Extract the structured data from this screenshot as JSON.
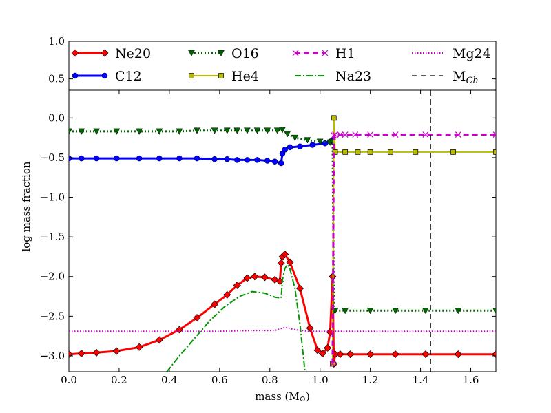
{
  "chart_data": {
    "type": "line",
    "title": "",
    "xlabel": "mass (M",
    "xlabel_symbol": "⊙",
    "ylabel": "log mass fraction",
    "xlim": [
      0.0,
      1.7
    ],
    "ylim": [
      -3.2,
      1.0
    ],
    "legend_break": 0.35,
    "x_ticks": [
      "0.0",
      "0.2",
      "0.4",
      "0.6",
      "0.8",
      "1.0",
      "1.2",
      "1.4",
      "1.6"
    ],
    "y_ticks": [
      "1.0",
      "0.5",
      "0.0",
      "−0.5",
      "−1.0",
      "−1.5",
      "−2.0",
      "−2.5",
      "−3.0"
    ],
    "legend_location": "top",
    "series": [
      {
        "name": "Ne20",
        "color": "#ff0000",
        "line": "solid",
        "marker": "diamond",
        "width": 3,
        "x": [
          0.0,
          0.05,
          0.11,
          0.19,
          0.28,
          0.36,
          0.44,
          0.51,
          0.58,
          0.63,
          0.67,
          0.71,
          0.74,
          0.78,
          0.82,
          0.84,
          0.845,
          0.85,
          0.86,
          0.88,
          0.92,
          0.96,
          0.99,
          1.01,
          1.03,
          1.04,
          1.05,
          1.055,
          1.06,
          1.08,
          1.12,
          1.2,
          1.3,
          1.42,
          1.55,
          1.7
        ],
        "y": [
          -2.98,
          -2.97,
          -2.96,
          -2.94,
          -2.89,
          -2.8,
          -2.67,
          -2.52,
          -2.35,
          -2.23,
          -2.11,
          -2.02,
          -2.0,
          -2.01,
          -2.04,
          -2.06,
          -1.83,
          -1.75,
          -1.72,
          -1.82,
          -2.15,
          -2.65,
          -2.93,
          -2.97,
          -2.9,
          -2.7,
          -2.0,
          -3.1,
          -2.98,
          -2.98,
          -2.98,
          -2.98,
          -2.98,
          -2.98,
          -2.98,
          -2.98
        ]
      },
      {
        "name": "C12",
        "color": "#0000ff",
        "line": "solid",
        "marker": "circle",
        "width": 3,
        "x": [
          0.0,
          0.05,
          0.11,
          0.19,
          0.28,
          0.36,
          0.44,
          0.51,
          0.58,
          0.63,
          0.67,
          0.71,
          0.75,
          0.79,
          0.82,
          0.845,
          0.85,
          0.86,
          0.88,
          0.92,
          0.97,
          1.02,
          1.04,
          1.05
        ],
        "y": [
          -0.51,
          -0.51,
          -0.51,
          -0.51,
          -0.51,
          -0.51,
          -0.51,
          -0.51,
          -0.52,
          -0.52,
          -0.53,
          -0.53,
          -0.53,
          -0.54,
          -0.55,
          -0.57,
          -0.45,
          -0.4,
          -0.37,
          -0.36,
          -0.34,
          -0.32,
          -0.3,
          -0.28
        ]
      },
      {
        "name": "O16",
        "color": "#006400",
        "line": "dotted",
        "marker": "triangle-down",
        "width": 3,
        "x": [
          0.0,
          0.05,
          0.11,
          0.19,
          0.28,
          0.36,
          0.44,
          0.51,
          0.58,
          0.63,
          0.67,
          0.71,
          0.75,
          0.79,
          0.83,
          0.85,
          0.87,
          0.9,
          0.95,
          1.0,
          1.04,
          1.05,
          1.055,
          1.06,
          1.1,
          1.2,
          1.3,
          1.42,
          1.55,
          1.7
        ],
        "y": [
          -0.17,
          -0.17,
          -0.17,
          -0.17,
          -0.17,
          -0.17,
          -0.17,
          -0.16,
          -0.16,
          -0.16,
          -0.16,
          -0.16,
          -0.16,
          -0.16,
          -0.16,
          -0.15,
          -0.2,
          -0.25,
          -0.28,
          -0.3,
          -0.31,
          -0.3,
          -2.43,
          -2.43,
          -2.43,
          -2.43,
          -2.43,
          -2.43,
          -2.43,
          -2.43
        ]
      },
      {
        "name": "He4",
        "color": "#bbbb00",
        "line": "solid",
        "marker": "square",
        "width": 2,
        "x": [
          1.05,
          1.055,
          1.06,
          1.1,
          1.15,
          1.2,
          1.28,
          1.38,
          1.53,
          1.7
        ],
        "y": [
          -3.1,
          0.0,
          -0.43,
          -0.43,
          -0.43,
          -0.43,
          -0.43,
          -0.43,
          -0.43,
          -0.43
        ]
      },
      {
        "name": "H1",
        "color": "#cc00cc",
        "line": "dashed",
        "marker": "x",
        "width": 3,
        "x": [
          1.05,
          1.055,
          1.06,
          1.08,
          1.1,
          1.14,
          1.2,
          1.3,
          1.42,
          1.55,
          1.7
        ],
        "y": [
          -3.1,
          -0.22,
          -0.21,
          -0.21,
          -0.21,
          -0.21,
          -0.21,
          -0.21,
          -0.21,
          -0.21,
          -0.21
        ]
      },
      {
        "name": "Na23",
        "color": "#009900",
        "line": "dashdot",
        "marker": "none",
        "width": 2,
        "x": [
          0.39,
          0.44,
          0.5,
          0.56,
          0.62,
          0.68,
          0.73,
          0.78,
          0.82,
          0.845,
          0.85,
          0.86,
          0.87,
          0.88,
          0.9,
          0.92,
          0.94
        ],
        "y": [
          -3.2,
          -3.0,
          -2.78,
          -2.56,
          -2.38,
          -2.25,
          -2.19,
          -2.21,
          -2.26,
          -2.27,
          -2.05,
          -1.9,
          -1.85,
          -1.9,
          -2.15,
          -2.6,
          -3.2
        ]
      },
      {
        "name": "Mg24",
        "color": "#cc00cc",
        "line": "dotted-fine",
        "marker": "none",
        "width": 2,
        "x": [
          0.0,
          0.2,
          0.4,
          0.6,
          0.75,
          0.82,
          0.86,
          0.9,
          0.95,
          1.0,
          1.05,
          1.2,
          1.4,
          1.7
        ],
        "y": [
          -2.69,
          -2.69,
          -2.69,
          -2.69,
          -2.68,
          -2.68,
          -2.64,
          -2.67,
          -2.69,
          -2.69,
          -2.69,
          -2.69,
          -2.69,
          -2.69
        ]
      }
    ],
    "vlines": [
      {
        "name": "M",
        "subscript": "Ch",
        "x": 1.44,
        "color": "#000000",
        "line": "dashed"
      }
    ],
    "legend": [
      {
        "label": "Ne20",
        "series": "Ne20"
      },
      {
        "label": "O16",
        "series": "O16"
      },
      {
        "label": "H1",
        "series": "H1"
      },
      {
        "label": "Mg24",
        "series": "Mg24"
      },
      {
        "label": "C12",
        "series": "C12"
      },
      {
        "label": "He4",
        "series": "He4"
      },
      {
        "label": "Na23",
        "series": "Na23"
      },
      {
        "label": "M",
        "subscript": "Ch",
        "series": "MCh"
      }
    ]
  }
}
